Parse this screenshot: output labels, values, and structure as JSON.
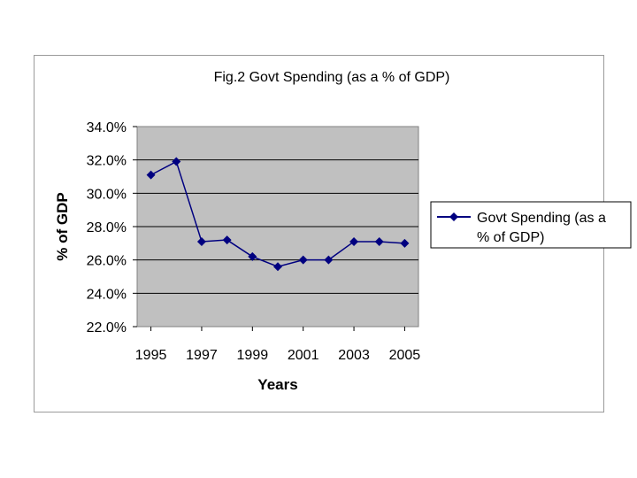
{
  "chart_data": {
    "type": "line",
    "title": "Fig.2 Govt Spending (as a % of GDP)",
    "xlabel": "Years",
    "ylabel": "% of GDP",
    "ylim": [
      22.0,
      34.0
    ],
    "ytick_step": 2.0,
    "yticks": [
      "22.0%",
      "24.0%",
      "26.0%",
      "28.0%",
      "30.0%",
      "32.0%",
      "34.0%"
    ],
    "xlim": [
      1995,
      2005
    ],
    "xticks": [
      "1995",
      "1997",
      "1999",
      "2001",
      "2003",
      "2005"
    ],
    "grid": true,
    "legend_position": "right",
    "series": [
      {
        "name": "Govt Spending (as a % of GDP)",
        "legend_lines": [
          "Govt Spending (as a",
          "% of GDP)"
        ],
        "color": "#000080",
        "x": [
          1995,
          1996,
          1997,
          1998,
          1999,
          2000,
          2001,
          2002,
          2003,
          2004,
          2005
        ],
        "values": [
          31.1,
          31.9,
          27.1,
          27.2,
          26.2,
          25.6,
          26.0,
          26.0,
          27.1,
          27.1,
          27.0
        ]
      }
    ],
    "colors": {
      "plot_bg": "#c0c0c0",
      "grid": "#000000",
      "frame": "#808080"
    }
  }
}
